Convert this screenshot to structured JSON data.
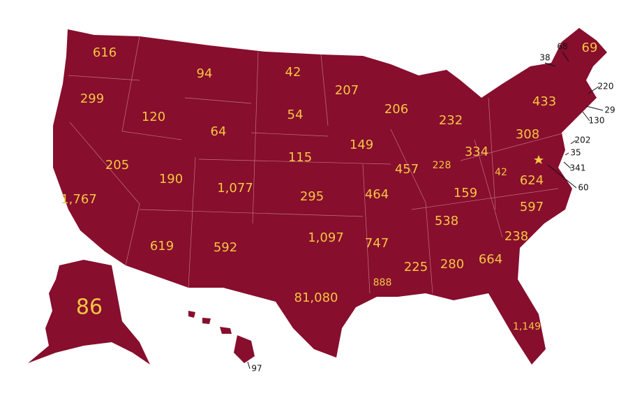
{
  "labels": [
    "616",
    "299",
    "120",
    "94",
    "42",
    "207",
    "54",
    "64",
    "206",
    "232",
    "433",
    "205",
    "190",
    "1,077",
    "115",
    "149",
    "457",
    "228",
    "334",
    "308",
    "42",
    "624",
    "1,767",
    "295",
    "464",
    "159",
    "597",
    "538",
    "619",
    "592",
    "1,097",
    "747",
    "238",
    "225",
    "280",
    "664",
    "888",
    "81,080",
    "1,149",
    "86",
    "69"
  ],
  "callouts": [
    "38",
    "68",
    "220",
    "29",
    "130",
    "202",
    "35",
    "341",
    "60",
    "97"
  ]
}
